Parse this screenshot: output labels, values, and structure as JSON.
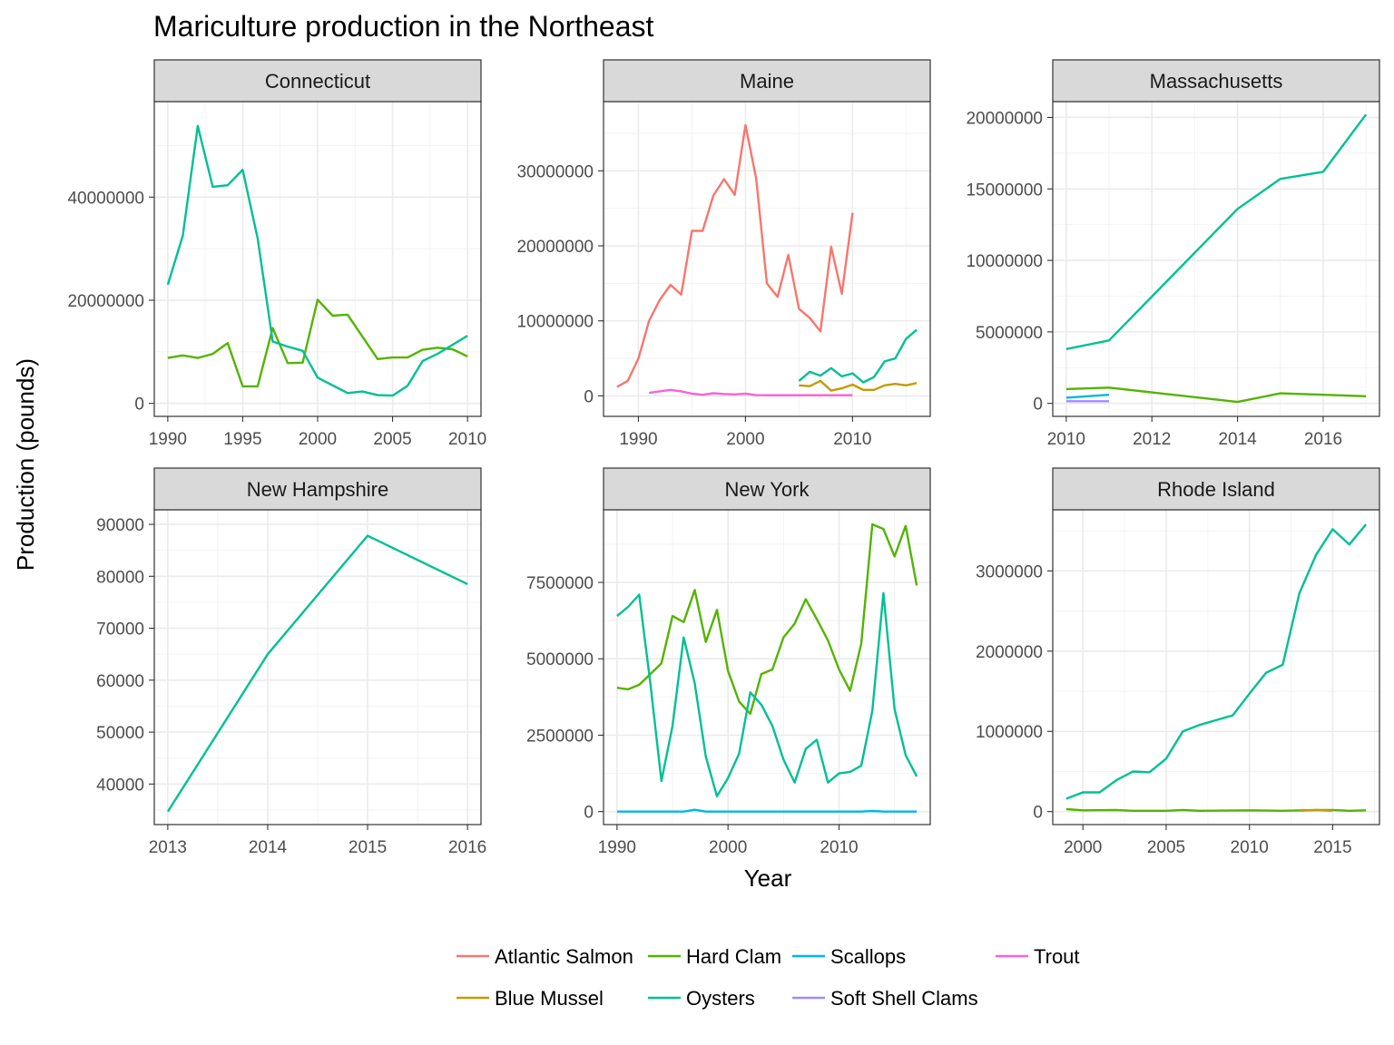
{
  "chart_data": {
    "type": "line",
    "title": "Mariculture production in the Northeast",
    "xlabel": "Year",
    "ylabel": "Production (pounds)",
    "grid": true,
    "legend_position": "bottom",
    "species": [
      {
        "name": "Atlantic Salmon",
        "color": "#F8766D"
      },
      {
        "name": "Blue Mussel",
        "color": "#C49A00"
      },
      {
        "name": "Hard Clam",
        "color": "#53B400"
      },
      {
        "name": "Oysters",
        "color": "#00C094"
      },
      {
        "name": "Scallops",
        "color": "#00B6EB"
      },
      {
        "name": "Soft Shell Clams",
        "color": "#A58AFF"
      },
      {
        "name": "Trout",
        "color": "#FB61D7"
      }
    ],
    "panels": [
      {
        "state": "Connecticut",
        "xlim": [
          1990,
          2010
        ],
        "ylim": [
          0,
          56000000
        ],
        "xticks": [
          1990,
          1995,
          2000,
          2005,
          2010
        ],
        "xtick_labels": [
          "1990",
          "1995",
          "2000",
          "2005",
          "2010"
        ],
        "yticks": [
          0,
          20000000,
          40000000
        ],
        "ytick_labels": [
          "0",
          "20000000",
          "40000000"
        ],
        "series": [
          {
            "name": "Hard Clam",
            "x": [
              1990,
              1991,
              1992,
              1993,
              1994,
              1995,
              1996,
              1997,
              1998,
              1999,
              2000,
              2001,
              2002,
              2004,
              2005,
              2006,
              2007,
              2008,
              2009,
              2010
            ],
            "y": [
              8800000,
              9300000,
              8800000,
              9600000,
              11700000,
              3300000,
              3300000,
              14600000,
              7800000,
              7900000,
              20100000,
              17000000,
              17200000,
              8600000,
              8900000,
              8900000,
              10400000,
              10800000,
              10500000,
              9100000
            ]
          },
          {
            "name": "Oysters",
            "x": [
              1990,
              1991,
              1992,
              1993,
              1994,
              1995,
              1996,
              1997,
              1998,
              1999,
              2000,
              2002,
              2003,
              2004,
              2005,
              2006,
              2007,
              2008,
              2010
            ],
            "y": [
              23000000,
              32500000,
              53800000,
              42000000,
              42300000,
              45300000,
              32000000,
              12000000,
              11000000,
              10200000,
              5000000,
              2000000,
              2300000,
              1600000,
              1500000,
              3400000,
              8200000,
              9600000,
              13100000
            ]
          }
        ]
      },
      {
        "state": "Maine",
        "xlim": [
          1988,
          2016
        ],
        "ylim": [
          -1000000,
          37500000
        ],
        "xticks": [
          1990,
          2000,
          2010
        ],
        "xtick_labels": [
          "1990",
          "2000",
          "2010"
        ],
        "yticks": [
          0,
          10000000,
          20000000,
          30000000
        ],
        "ytick_labels": [
          "0",
          "10000000",
          "20000000",
          "30000000"
        ],
        "series": [
          {
            "name": "Atlantic Salmon",
            "x": [
              1988,
              1989,
              1990,
              1991,
              1992,
              1993,
              1994,
              1995,
              1996,
              1997,
              1998,
              1999,
              2000,
              2001,
              2002,
              2003,
              2004,
              2005,
              2006,
              2007,
              2008,
              2009,
              2010
            ],
            "y": [
              1200000,
              2000000,
              5000000,
              10000000,
              12800000,
              14800000,
              13500000,
              22000000,
              22000000,
              26700000,
              28900000,
              26800000,
              36100000,
              29000000,
              15000000,
              13200000,
              18800000,
              11600000,
              10400000,
              8600000,
              19900000,
              13600000,
              24400000
            ]
          },
          {
            "name": "Trout",
            "x": [
              1991,
              1992,
              1993,
              1994,
              1995,
              1996,
              1997,
              1998,
              1999,
              2000,
              2001,
              2002,
              2003,
              2004,
              2005,
              2006,
              2007,
              2008,
              2009,
              2010
            ],
            "y": [
              400000,
              600000,
              800000,
              600000,
              300000,
              150000,
              350000,
              250000,
              200000,
              300000,
              100000,
              80000,
              80000,
              80000,
              80000,
              80000,
              80000,
              80000,
              80000,
              80000
            ]
          },
          {
            "name": "Blue Mussel",
            "x": [
              2005,
              2006,
              2007,
              2008,
              2009,
              2010,
              2011,
              2012,
              2013,
              2014,
              2015,
              2016
            ],
            "y": [
              1400000,
              1300000,
              2000000,
              700000,
              1000000,
              1500000,
              800000,
              800000,
              1400000,
              1600000,
              1400000,
              1700000
            ]
          },
          {
            "name": "Oysters",
            "x": [
              2005,
              2006,
              2007,
              2008,
              2009,
              2010,
              2011,
              2012,
              2013,
              2014,
              2015,
              2016
            ],
            "y": [
              2000000,
              3200000,
              2700000,
              3700000,
              2600000,
              3000000,
              1800000,
              2500000,
              4600000,
              5000000,
              7600000,
              8800000
            ]
          }
        ]
      },
      {
        "state": "Massachusetts",
        "xlim": [
          2010,
          2017
        ],
        "ylim": [
          0,
          20200000
        ],
        "xticks": [
          2010,
          2012,
          2014,
          2016
        ],
        "xtick_labels": [
          "2010",
          "2012",
          "2014",
          "2016"
        ],
        "yticks": [
          0,
          5000000,
          10000000,
          15000000,
          20000000
        ],
        "ytick_labels": [
          "0",
          "5000000",
          "10000000",
          "15000000",
          "20000000"
        ],
        "series": [
          {
            "name": "Oysters",
            "x": [
              2010,
              2011,
              2014,
              2015,
              2016,
              2017
            ],
            "y": [
              3800000,
              4400000,
              13600000,
              15700000,
              16200000,
              20200000
            ]
          },
          {
            "name": "Hard Clam",
            "x": [
              2010,
              2011,
              2014,
              2015,
              2017
            ],
            "y": [
              1000000,
              1100000,
              100000,
              700000,
              500000
            ]
          },
          {
            "name": "Scallops",
            "x": [
              2010,
              2011
            ],
            "y": [
              400000,
              600000
            ]
          },
          {
            "name": "Soft Shell Clams",
            "x": [
              2010,
              2011
            ],
            "y": [
              150000,
              150000
            ]
          }
        ]
      },
      {
        "state": "New Hampshire",
        "xlim": [
          2013,
          2016
        ],
        "ylim": [
          34700,
          90300
        ],
        "xticks": [
          2013,
          2014,
          2015,
          2016
        ],
        "xtick_labels": [
          "2013",
          "2014",
          "2015",
          "2016"
        ],
        "yticks": [
          40000,
          50000,
          60000,
          70000,
          80000,
          90000
        ],
        "ytick_labels": [
          "40000",
          "50000",
          "60000",
          "70000",
          "80000",
          "90000"
        ],
        "series": [
          {
            "name": "Oysters",
            "x": [
              2013,
              2014,
              2015,
              2016
            ],
            "y": [
              34700,
              65000,
              87800,
              78500
            ]
          }
        ]
      },
      {
        "state": "New York",
        "xlim": [
          1990,
          2017
        ],
        "ylim": [
          0,
          9450000
        ],
        "xticks": [
          1990,
          2000,
          2010
        ],
        "xtick_labels": [
          "1990",
          "2000",
          "2010"
        ],
        "yticks": [
          0,
          2500000,
          5000000,
          7500000
        ],
        "ytick_labels": [
          "0",
          "2500000",
          "5000000",
          "7500000"
        ],
        "series": [
          {
            "name": "Hard Clam",
            "x": [
              1990,
              1991,
              1992,
              1993,
              1994,
              1995,
              1996,
              1997,
              1998,
              1999,
              2000,
              2001,
              2002,
              2003,
              2004,
              2005,
              2006,
              2007,
              2008,
              2009,
              2010,
              2011,
              2012,
              2013,
              2014,
              2015,
              2016,
              2017
            ],
            "y": [
              4050000,
              4000000,
              4150000,
              4500000,
              4850000,
              6400000,
              6200000,
              7250000,
              5550000,
              6600000,
              4600000,
              3600000,
              3200000,
              4500000,
              4650000,
              5700000,
              6150000,
              6950000,
              6300000,
              5600000,
              4650000,
              3950000,
              5500000,
              9400000,
              9250000,
              8350000,
              9350000,
              7400000
            ]
          },
          {
            "name": "Oysters",
            "x": [
              1990,
              1991,
              1992,
              1993,
              1994,
              1995,
              1996,
              1997,
              1998,
              1999,
              2000,
              2001,
              2002,
              2003,
              2004,
              2005,
              2006,
              2007,
              2008,
              2009,
              2010,
              2011,
              2012,
              2013,
              2014,
              2015,
              2016,
              2017
            ],
            "y": [
              6400000,
              6700000,
              7100000,
              4200000,
              1000000,
              2800000,
              5700000,
              4200000,
              1800000,
              500000,
              1100000,
              1900000,
              3900000,
              3500000,
              2800000,
              1700000,
              950000,
              2050000,
              2350000,
              950000,
              1250000,
              1300000,
              1500000,
              3300000,
              7150000,
              3350000,
              1850000,
              1150000
            ]
          },
          {
            "name": "Scallops",
            "x": [
              1990,
              1991,
              1992,
              1993,
              1994,
              1995,
              1996,
              1997,
              1998,
              1999,
              2000,
              2005,
              2010,
              2012,
              2013,
              2014,
              2015,
              2016,
              2017
            ],
            "y": [
              0,
              0,
              0,
              0,
              0,
              0,
              0,
              60000,
              0,
              0,
              0,
              0,
              0,
              0,
              20000,
              0,
              0,
              0,
              0
            ]
          }
        ]
      },
      {
        "state": "Rhode Island",
        "xlim": [
          1999,
          2017
        ],
        "ylim": [
          0,
          3600000
        ],
        "xticks": [
          2000,
          2005,
          2010,
          2015
        ],
        "xtick_labels": [
          "2000",
          "2005",
          "2010",
          "2015"
        ],
        "yticks": [
          0,
          1000000,
          2000000,
          3000000
        ],
        "ytick_labels": [
          "0",
          "1000000",
          "2000000",
          "3000000"
        ],
        "series": [
          {
            "name": "Oysters",
            "x": [
              1999,
              2000,
              2001,
              2002,
              2003,
              2004,
              2005,
              2006,
              2007,
              2008,
              2009,
              2010,
              2011,
              2012,
              2013,
              2014,
              2015,
              2016,
              2017
            ],
            "y": [
              160000,
              240000,
              240000,
              390000,
              500000,
              490000,
              660000,
              1000000,
              1080000,
              1140000,
              1200000,
              1470000,
              1730000,
              1830000,
              2720000,
              3200000,
              3520000,
              3330000,
              3580000
            ]
          },
          {
            "name": "Hard Clam",
            "x": [
              1999,
              2000,
              2002,
              2003,
              2005,
              2006,
              2007,
              2010,
              2012,
              2014,
              2015,
              2016,
              2017
            ],
            "y": [
              30000,
              15000,
              20000,
              10000,
              10000,
              20000,
              10000,
              15000,
              10000,
              20000,
              20000,
              10000,
              15000
            ]
          },
          {
            "name": "Blue Mussel",
            "x": [
              2013,
              2014,
              2015
            ],
            "y": [
              10000,
              20000,
              10000
            ]
          }
        ]
      }
    ]
  }
}
